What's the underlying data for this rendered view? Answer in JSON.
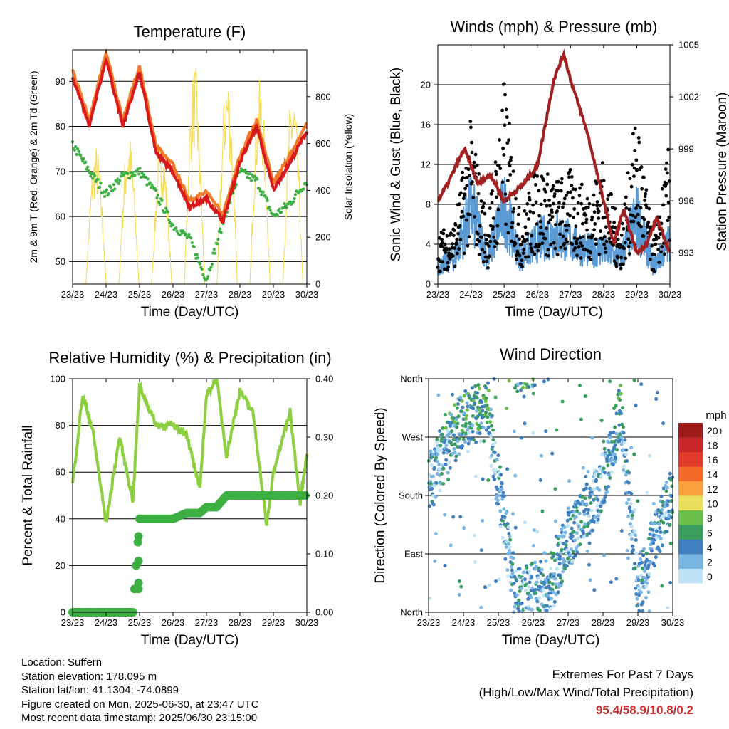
{
  "x_ticks": [
    "23/23",
    "24/23",
    "25/23",
    "26/23",
    "27/23",
    "28/23",
    "29/23",
    "30/23"
  ],
  "xlabel": "Time (Day/UTC)",
  "colors": {
    "temp2m": "#d7191c",
    "temp9m": "#f47a29",
    "dewpoint": "#3cb043",
    "solar": "#f5dc5a",
    "wind": "#5b9bd5",
    "gust": "#000000",
    "pressure": "#a32020",
    "rh": "#8ccf40",
    "rain": "#3cb043"
  },
  "charts": {
    "temperature": {
      "title": "Temperature (F)",
      "ylabel": "2m & 9m T (Red, Orange) & 2m Td (Green)",
      "y2label": "Solar Insolation (Yellow)",
      "yticks": [
        "50",
        "60",
        "70",
        "80",
        "90"
      ],
      "y2ticks": [
        "0",
        "200",
        "400",
        "600",
        "800"
      ]
    },
    "winds": {
      "title": "Winds (mph) & Pressure (mb)",
      "ylabel": "Sonic Wind & Gust (Blue, Black)",
      "y2label": "Station Pressure (Maroon)",
      "yticks": [
        "0",
        "4",
        "8",
        "12",
        "16",
        "20"
      ],
      "y2ticks": [
        "993",
        "996",
        "999",
        "1002",
        "1005"
      ]
    },
    "humidity": {
      "title": "Relative Humidity (%) & Precipitation (in)",
      "ylabel": "Percent & Total Rainfall",
      "yticks": [
        "0",
        "20",
        "40",
        "60",
        "80",
        "100"
      ],
      "y2ticks": [
        "0.00",
        "0.10",
        "0.20",
        "0.30",
        "0.40"
      ]
    },
    "direction": {
      "title": "Wind Direction",
      "ylabel": "Direction (Colored By Speed)",
      "yticks": [
        "North",
        "East",
        "South",
        "West",
        "North"
      ],
      "legend_title": "mph",
      "legend_labels": [
        "20+",
        "18",
        "16",
        "14",
        "12",
        "10",
        "8",
        "6",
        "4",
        "2",
        "0"
      ],
      "legend_colors": [
        "#9e1b1b",
        "#c62828",
        "#e03a2a",
        "#f06a2a",
        "#f8a03e",
        "#e8e05a",
        "#6abf4b",
        "#3a9e5e",
        "#3f7fbf",
        "#79b6e3",
        "#bfe3f5"
      ]
    }
  },
  "chart_data": [
    {
      "type": "line",
      "title": "Temperature (F)",
      "x": [
        23,
        23.5,
        24,
        24.5,
        25,
        25.5,
        26,
        26.5,
        27,
        27.5,
        28,
        28.5,
        29,
        29.5,
        30
      ],
      "series": [
        {
          "name": "2m T",
          "values": [
            91,
            80,
            95,
            80,
            92,
            74,
            70,
            62,
            64,
            59,
            72,
            80,
            66,
            72,
            79
          ]
        },
        {
          "name": "2m Td",
          "values": [
            76,
            70,
            65,
            69,
            70,
            65,
            58,
            55,
            46,
            59,
            70,
            68,
            60,
            63,
            68
          ]
        }
      ],
      "ylim": [
        45,
        97
      ],
      "y2": {
        "name": "Solar Insolation",
        "peak_values": [
          600,
          650,
          620,
          950,
          920,
          880,
          850,
          880
        ],
        "ylim": [
          0,
          1000
        ]
      }
    },
    {
      "type": "scatter",
      "title": "Winds (mph) & Pressure (mb)",
      "x": [
        23,
        23.5,
        24,
        24.5,
        25,
        25.5,
        26,
        26.5,
        27,
        27.5,
        28,
        28.5,
        29,
        29.5,
        30
      ],
      "series": [
        {
          "name": "Sonic Wind",
          "values": [
            2,
            3,
            9,
            3,
            9,
            3,
            5,
            6,
            5,
            4,
            4,
            3,
            8,
            2,
            5
          ]
        },
        {
          "name": "Gust",
          "values": [
            5,
            6,
            16,
            6,
            20,
            6,
            12,
            10,
            11,
            9,
            12,
            5,
            17,
            4,
            14
          ]
        }
      ],
      "pressure": {
        "x": [
          23,
          23.3,
          23.8,
          24.2,
          24.6,
          25,
          25.3,
          25.6,
          26,
          26.5,
          26.8,
          27,
          27.5,
          28,
          28.3,
          28.6,
          29,
          29.3,
          29.6,
          30
        ],
        "values": [
          996,
          997,
          999,
          997,
          997.5,
          996,
          996.5,
          997,
          998,
          1003,
          1004.5,
          1003,
          1000,
          996,
          993.5,
          995.5,
          993,
          993.5,
          995,
          993
        ]
      },
      "ylim": [
        0,
        24
      ],
      "y2lim": [
        991.2,
        1005
      ]
    },
    {
      "type": "line",
      "title": "Relative Humidity (%) & Precipitation (in)",
      "x": [
        23,
        23.3,
        23.6,
        24,
        24.4,
        24.8,
        25,
        25.5,
        26,
        26.4,
        26.8,
        27,
        27.3,
        27.6,
        28,
        28.4,
        28.8,
        29,
        29.5,
        29.8,
        30
      ],
      "series": [
        {
          "name": "RH",
          "values": [
            55,
            93,
            78,
            38,
            75,
            48,
            97,
            80,
            80,
            77,
            52,
            93,
            100,
            67,
            95,
            85,
            37,
            60,
            86,
            47,
            69
          ]
        },
        {
          "name": "Total Rainfall",
          "values": [
            0,
            0,
            0,
            0,
            0,
            0,
            0.16,
            0.16,
            0.16,
            0.17,
            0.17,
            0.18,
            0.18,
            0.2,
            0.2,
            0.2,
            0.2,
            0.2,
            0.2,
            0.2,
            0.2
          ]
        }
      ],
      "ylim": [
        0,
        100
      ],
      "y2lim": [
        0,
        0.4
      ]
    },
    {
      "type": "scatter",
      "title": "Wind Direction",
      "x": [
        23,
        24,
        24.7,
        25.5,
        26.5,
        27,
        27.5,
        28,
        28.5,
        29,
        30
      ],
      "series": [
        {
          "name": "Direction (deg)",
          "values": [
            200,
            300,
            310,
            20,
            45,
            110,
            150,
            200,
            310,
            40,
            190
          ]
        }
      ],
      "ylim": [
        0,
        360
      ]
    }
  ],
  "info_lines": [
    "Location: Suffern",
    "Station elevation: 178.095 m",
    "Station lat/lon: 41.1304; -74.0899",
    "Figure created on Mon, 2025-06-30, at 23:47 UTC",
    "Most recent data timestamp: 2025/06/30 23:15:00"
  ],
  "extremes": {
    "line1": "Extremes For Past 7 Days",
    "line2": "(High/Low/Max Wind/Total Precipitation)",
    "values": "95.4/58.9/10.8/0.2"
  }
}
